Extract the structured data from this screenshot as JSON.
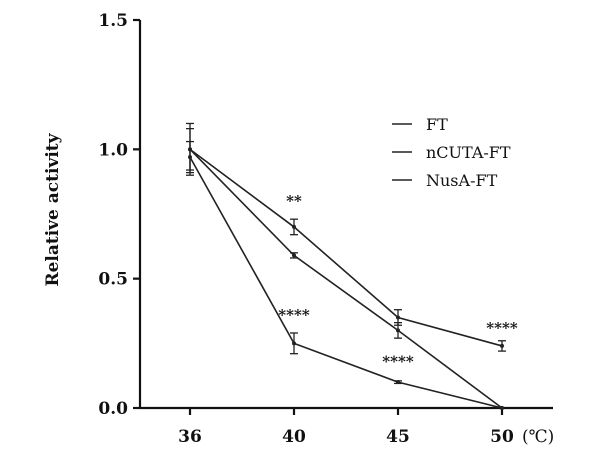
{
  "chart_data": {
    "type": "line",
    "title": "",
    "xlabel": "",
    "x_unit": "(℃)",
    "ylabel": "Relative activity",
    "x": [
      36,
      40,
      45,
      50
    ],
    "x_tick_labels": [
      "36",
      "40",
      "45",
      "50"
    ],
    "ylim": [
      0,
      1.5
    ],
    "y_ticks": [
      0.0,
      0.5,
      1.0,
      1.5
    ],
    "y_tick_labels": [
      "0.0",
      "0.5",
      "1.0",
      "1.5"
    ],
    "legend_position": "top-right",
    "grid": false,
    "series": [
      {
        "name": "FT",
        "values": [
          1.0,
          0.7,
          0.35,
          0.24
        ],
        "errors": [
          0.1,
          0.03,
          0.03,
          0.02
        ]
      },
      {
        "name": "nCUTA-FT",
        "values": [
          1.0,
          0.59,
          0.3,
          0.0
        ],
        "errors": [
          0.08,
          0.01,
          0.03,
          0.0
        ]
      },
      {
        "name": "NusA-FT",
        "values": [
          0.97,
          0.25,
          0.1,
          0.0
        ],
        "errors": [
          0.06,
          0.04,
          0.005,
          0.0
        ]
      }
    ],
    "annotations": [
      {
        "text": "**",
        "x": 40,
        "y": 0.78
      },
      {
        "text": "****",
        "x": 40,
        "y": 0.34
      },
      {
        "text": "****",
        "x": 45,
        "y": 0.16
      },
      {
        "text": "****",
        "x": 50,
        "y": 0.29
      }
    ]
  }
}
